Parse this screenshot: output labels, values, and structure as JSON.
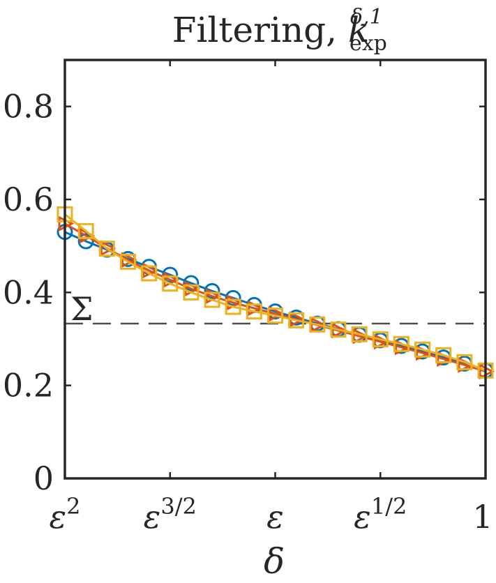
{
  "chart_data": {
    "type": "line",
    "title": {
      "main": "Filtering, ",
      "symbol": "k",
      "sup": "δ,1",
      "sub": "exp"
    },
    "xlabel": "δ",
    "ylabel": "",
    "xscale": "log",
    "xlim": [
      0,
      4
    ],
    "ylim": [
      0,
      0.9
    ],
    "x_ticks": [
      {
        "value": 0,
        "base": "ε",
        "exp": "2"
      },
      {
        "value": 1,
        "base": "ε",
        "exp": "3/2"
      },
      {
        "value": 2,
        "base": "ε",
        "exp": ""
      },
      {
        "value": 3,
        "base": "ε",
        "exp": "1/2"
      },
      {
        "value": 4,
        "base": "1",
        "exp": ""
      }
    ],
    "y_ticks": [
      {
        "value": 0,
        "label": "0"
      },
      {
        "value": 0.2,
        "label": "0.2"
      },
      {
        "value": 0.4,
        "label": "0.4"
      },
      {
        "value": 0.6,
        "label": "0.6"
      },
      {
        "value": 0.8,
        "label": "0.8"
      }
    ],
    "x": [
      0,
      0.2,
      0.4,
      0.6,
      0.8,
      1.0,
      1.2,
      1.4,
      1.6,
      1.8,
      2.0,
      2.2,
      2.4,
      2.6,
      2.8,
      3.0,
      3.2,
      3.4,
      3.6,
      3.8,
      4.0
    ],
    "series": [
      {
        "marker": "circle",
        "color": "#0072BD",
        "values": [
          0.53,
          0.51,
          0.492,
          0.472,
          0.455,
          0.438,
          0.42,
          0.403,
          0.388,
          0.373,
          0.359,
          0.346,
          0.333,
          0.321,
          0.309,
          0.297,
          0.285,
          0.273,
          0.26,
          0.247,
          0.232
        ]
      },
      {
        "marker": "triangle-right",
        "color": "#D95319",
        "values": [
          0.548,
          0.522,
          0.495,
          0.47,
          0.447,
          0.427,
          0.408,
          0.392,
          0.378,
          0.366,
          0.354,
          0.342,
          0.33,
          0.318,
          0.306,
          0.294,
          0.282,
          0.27,
          0.257,
          0.244,
          0.23
        ]
      },
      {
        "marker": "square",
        "color": "#EDB120",
        "values": [
          0.568,
          0.532,
          0.494,
          0.466,
          0.441,
          0.419,
          0.4,
          0.384,
          0.369,
          0.359,
          0.35,
          0.34,
          0.331,
          0.32,
          0.31,
          0.299,
          0.289,
          0.277,
          0.265,
          0.25,
          0.232
        ]
      }
    ],
    "reference_line": {
      "label": "Σ",
      "value": 0.333,
      "style": "dashed",
      "color": "#4d4d4d"
    },
    "grid": false,
    "legend": "none"
  }
}
